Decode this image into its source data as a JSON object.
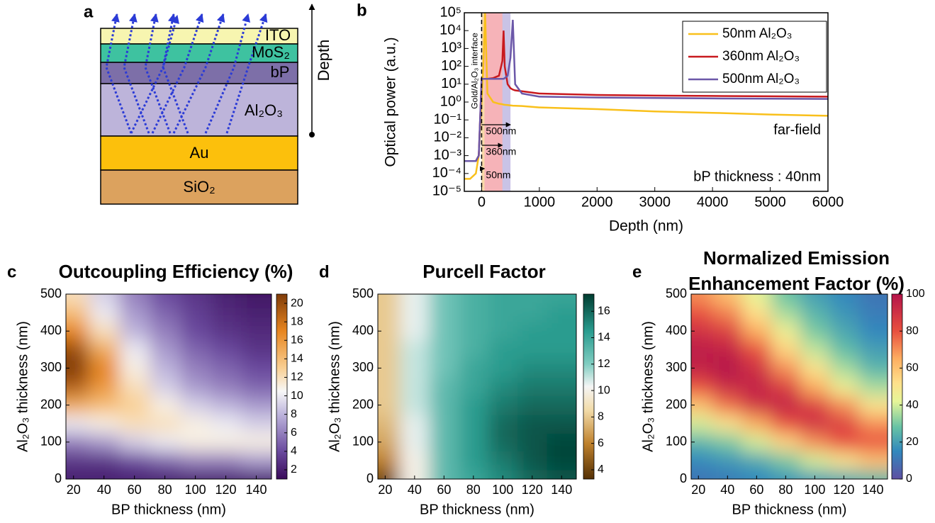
{
  "panel_a": {
    "label": "a",
    "layers": [
      "ITO",
      "MoS₂",
      "bP",
      "Al₂O₃",
      "Au",
      "SiO₂"
    ],
    "axis_label": "Depth"
  },
  "chart_data": [
    {
      "type": "line",
      "label": "b",
      "xlabel": "Depth (nm)",
      "ylabel": "Optical power (a.u.)",
      "log_y": true,
      "xlim": [
        -300,
        6000
      ],
      "xticks": [
        0,
        1000,
        2000,
        3000,
        4000,
        5000,
        6000
      ],
      "ylim": [
        1e-05,
        100000
      ],
      "yticks": [
        {
          "value": 1e-05,
          "label": "10⁻⁵"
        },
        {
          "value": 0.0001,
          "label": "10⁻⁴"
        },
        {
          "value": 0.001,
          "label": "10⁻³"
        },
        {
          "value": 0.01,
          "label": "10⁻²"
        },
        {
          "value": 0.1,
          "label": "10⁻¹"
        },
        {
          "value": 1,
          "label": "10⁰"
        },
        {
          "value": 10,
          "label": "10¹"
        },
        {
          "value": 100,
          "label": "10²"
        },
        {
          "value": 1000,
          "label": "10³"
        },
        {
          "value": 10000,
          "label": "10⁴"
        },
        {
          "value": 100000,
          "label": "10⁵"
        }
      ],
      "x": [
        -300,
        -200,
        -100,
        -50,
        0,
        30,
        60,
        100,
        200,
        300,
        360,
        380,
        400,
        450,
        500,
        540,
        580,
        700,
        1000,
        2000,
        3000,
        4000,
        5000,
        6000
      ],
      "series": [
        {
          "name": "50nm Al₂O₃",
          "color": "#f9c01b",
          "values": [
            5e-05,
            5e-05,
            0.0001,
            0.001,
            1,
            100,
            100000,
            3,
            1,
            0.8,
            0.75,
            0.72,
            0.7,
            0.68,
            0.65,
            0.63,
            0.62,
            0.6,
            0.5,
            0.4,
            0.3,
            0.25,
            0.2,
            0.17
          ]
        },
        {
          "name": "360nm Al₂O₃",
          "color": "#c8191e",
          "values": [
            0.0005,
            0.0005,
            0.0005,
            0.001,
            20,
            20,
            20,
            20,
            22,
            30,
            200,
            10000,
            100,
            10,
            6,
            5,
            4.5,
            4,
            3,
            2.5,
            2.3,
            2.2,
            2.1,
            2
          ]
        },
        {
          "name": "500nm Al₂O₃",
          "color": "#6b57a8",
          "values": [
            0.0005,
            0.0005,
            0.0005,
            0.001,
            20,
            20,
            20,
            20,
            20,
            20,
            20,
            20,
            22,
            30,
            300,
            40000,
            10,
            3,
            2,
            1.8,
            1.7,
            1.6,
            1.55,
            1.5
          ]
        }
      ],
      "legend": "upper right",
      "regions": [
        {
          "from": 0,
          "to": 500,
          "color": "#c9c3e6",
          "label": "500nm"
        },
        {
          "from": 0,
          "to": 360,
          "color": "#f6b3b8",
          "label": "360nm"
        },
        {
          "from": 0,
          "to": 50,
          "color": "#f8d9a8",
          "label": "50nm"
        }
      ],
      "interface": {
        "x": 0,
        "label": "Gold/Al₂O₃ interface"
      },
      "annotations": [
        "far-field",
        "bP thickness : 40nm"
      ]
    },
    {
      "type": "heatmap",
      "label": "c",
      "title": [
        "Outcoupling Efficiency (%)"
      ],
      "xlabel": "BP thickness (nm)",
      "ylabel": "Al₂O₃ thickness (nm)",
      "xlim": [
        15,
        150
      ],
      "xticks": [
        20,
        40,
        60,
        80,
        100,
        120,
        140
      ],
      "ylim": [
        0,
        500
      ],
      "yticks": [
        0,
        100,
        200,
        300,
        400,
        500
      ],
      "x": [
        20,
        40,
        60,
        80,
        100,
        120,
        140
      ],
      "y": [
        0,
        50,
        100,
        150,
        200,
        250,
        300,
        350,
        400,
        450,
        500
      ],
      "values": [
        [
          2,
          2,
          2,
          2,
          2,
          2,
          2
        ],
        [
          3,
          3,
          4,
          5,
          6,
          6,
          7
        ],
        [
          6,
          7,
          9,
          10,
          11,
          11,
          11
        ],
        [
          10,
          11,
          12,
          12,
          11,
          10,
          9
        ],
        [
          15,
          14,
          13,
          11,
          9,
          8,
          7
        ],
        [
          19,
          16,
          12,
          9,
          7,
          6,
          5
        ],
        [
          21,
          17,
          11,
          8,
          6,
          5,
          4
        ],
        [
          20,
          15,
          10,
          7,
          5,
          4,
          3
        ],
        [
          17,
          12,
          8,
          6,
          4,
          3,
          2.5
        ],
        [
          14,
          10,
          7,
          5,
          3.5,
          2.5,
          2
        ],
        [
          12,
          9,
          6,
          4,
          3,
          2,
          1.5
        ]
      ],
      "clim": [
        1,
        21
      ],
      "cticks": [
        2,
        4,
        6,
        8,
        10,
        12,
        14,
        16,
        18,
        20
      ],
      "colormap": [
        {
          "value": 1,
          "color": "#3a0b5a"
        },
        {
          "value": 4,
          "color": "#6a4a9e"
        },
        {
          "value": 8,
          "color": "#bdb4dc"
        },
        {
          "value": 10.5,
          "color": "#f7f7f7"
        },
        {
          "value": 13,
          "color": "#f9cf93"
        },
        {
          "value": 17,
          "color": "#e7851f"
        },
        {
          "value": 21,
          "color": "#7f3b08"
        }
      ]
    },
    {
      "type": "heatmap",
      "label": "d",
      "title": [
        "Purcell Factor"
      ],
      "xlabel": "BP thickness (nm)",
      "ylabel": "Al₂O₃ thickness (nm)",
      "xlim": [
        15,
        150
      ],
      "xticks": [
        20,
        40,
        60,
        80,
        100,
        120,
        140
      ],
      "ylim": [
        0,
        500
      ],
      "yticks": [
        0,
        100,
        200,
        300,
        400,
        500
      ],
      "x": [
        20,
        40,
        60,
        80,
        100,
        120,
        140
      ],
      "y": [
        0,
        50,
        100,
        150,
        200,
        250,
        300,
        350,
        400,
        450,
        500
      ],
      "values": [
        [
          4,
          10,
          13,
          14,
          15,
          16,
          16.5
        ],
        [
          6,
          10,
          13,
          14.5,
          15.5,
          16.5,
          17
        ],
        [
          7,
          10.5,
          13,
          14.5,
          16,
          16.5,
          17
        ],
        [
          7.5,
          10.5,
          13,
          14.5,
          16,
          16.5,
          16.5
        ],
        [
          8,
          11,
          13,
          14.5,
          15.5,
          16,
          16
        ],
        [
          8,
          11,
          13,
          14,
          15,
          15.5,
          15.5
        ],
        [
          8,
          11,
          12.5,
          14,
          14.5,
          15,
          15
        ],
        [
          8,
          11,
          12.5,
          13.5,
          14.5,
          14.5,
          14.5
        ],
        [
          8,
          10.5,
          12.5,
          13.5,
          14,
          14.5,
          14.5
        ],
        [
          8,
          10.5,
          12.5,
          13.5,
          14,
          14,
          14.5
        ],
        [
          8,
          10.5,
          12.5,
          13.5,
          14,
          14,
          14
        ]
      ],
      "clim": [
        3.3,
        17.3
      ],
      "cticks": [
        4,
        6,
        8,
        10,
        12,
        14,
        16
      ],
      "colormap": [
        {
          "value": 3.3,
          "color": "#543005"
        },
        {
          "value": 6,
          "color": "#bf812d"
        },
        {
          "value": 8.5,
          "color": "#f2dba8"
        },
        {
          "value": 10.3,
          "color": "#f5f5f5"
        },
        {
          "value": 12,
          "color": "#80cdc1"
        },
        {
          "value": 14.5,
          "color": "#2a9c8f"
        },
        {
          "value": 17.3,
          "color": "#003c30"
        }
      ]
    },
    {
      "type": "heatmap",
      "label": "e",
      "title": [
        "Normalized Emission",
        "Enhancement Factor (%)"
      ],
      "xlabel": "BP thickness (nm)",
      "ylabel": "Al₂O₃ thickness (nm)",
      "xlim": [
        15,
        150
      ],
      "xticks": [
        20,
        40,
        60,
        80,
        100,
        120,
        140
      ],
      "ylim": [
        0,
        500
      ],
      "yticks": [
        0,
        100,
        200,
        300,
        400,
        500
      ],
      "x": [
        20,
        40,
        60,
        80,
        100,
        120,
        140
      ],
      "y": [
        0,
        50,
        100,
        150,
        200,
        250,
        300,
        350,
        400,
        450,
        500
      ],
      "values": [
        [
          10,
          12,
          15,
          18,
          20,
          22,
          25
        ],
        [
          15,
          18,
          22,
          30,
          40,
          50,
          60
        ],
        [
          25,
          30,
          40,
          55,
          70,
          80,
          80
        ],
        [
          40,
          50,
          65,
          80,
          90,
          85,
          70
        ],
        [
          60,
          75,
          90,
          95,
          85,
          70,
          50
        ],
        [
          80,
          92,
          95,
          85,
          65,
          45,
          35
        ],
        [
          95,
          100,
          90,
          70,
          50,
          35,
          25
        ],
        [
          97,
          95,
          80,
          55,
          38,
          27,
          20
        ],
        [
          90,
          85,
          65,
          45,
          30,
          22,
          15
        ],
        [
          80,
          72,
          52,
          35,
          25,
          18,
          12
        ],
        [
          70,
          60,
          42,
          28,
          20,
          15,
          10
        ]
      ],
      "clim": [
        0,
        100
      ],
      "cticks": [
        0,
        20,
        40,
        60,
        80,
        100
      ],
      "colormap": [
        {
          "value": 0,
          "color": "#5e4fa2"
        },
        {
          "value": 15,
          "color": "#3288bd"
        },
        {
          "value": 28,
          "color": "#66c2a5"
        },
        {
          "value": 42,
          "color": "#e6f598"
        },
        {
          "value": 52,
          "color": "#fee08b"
        },
        {
          "value": 65,
          "color": "#fdae61"
        },
        {
          "value": 80,
          "color": "#e8503f"
        },
        {
          "value": 100,
          "color": "#b5134a"
        }
      ]
    }
  ]
}
